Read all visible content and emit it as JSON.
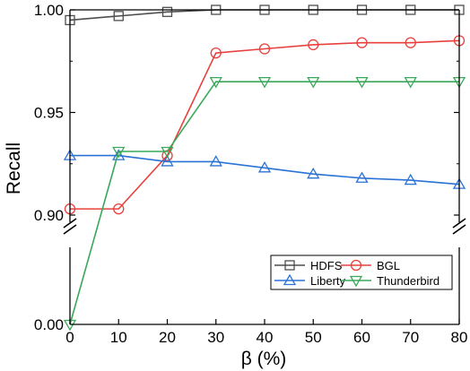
{
  "chart_data": {
    "type": "line",
    "title": "",
    "xlabel": "β (%)",
    "ylabel": "Recall",
    "x": [
      0,
      10,
      20,
      30,
      40,
      50,
      60,
      70,
      80
    ],
    "xlim": [
      0,
      80
    ],
    "x_ticks": [
      "0",
      "10",
      "20",
      "30",
      "40",
      "50",
      "60",
      "70",
      "80"
    ],
    "y_scale": "broken",
    "y_segments": [
      {
        "range": [
          0.0,
          0.0
        ],
        "ticks": [
          "0.00"
        ]
      },
      {
        "range": [
          0.9,
          1.0
        ],
        "ticks": [
          "0.90",
          "0.95",
          "1.00"
        ]
      }
    ],
    "grid": false,
    "legend_position": "lower-right",
    "series": [
      {
        "name": "HDFS",
        "color": "#4d4d4d",
        "marker": "square",
        "values": [
          0.995,
          0.997,
          0.999,
          1.0,
          1.0,
          1.0,
          1.0,
          1.0,
          1.0
        ]
      },
      {
        "name": "BGL",
        "color": "#e8403c",
        "marker": "circle",
        "values": [
          0.903,
          0.903,
          0.929,
          0.979,
          0.981,
          0.983,
          0.984,
          0.984,
          0.985
        ]
      },
      {
        "name": "Liberty",
        "color": "#2a72d5",
        "marker": "triangle-up",
        "values": [
          0.929,
          0.929,
          0.926,
          0.926,
          0.923,
          0.92,
          0.918,
          0.917,
          0.915
        ]
      },
      {
        "name": "Thunderbird",
        "color": "#3aa85a",
        "marker": "triangle-down",
        "values": [
          0.0,
          0.931,
          0.931,
          0.965,
          0.965,
          0.965,
          0.965,
          0.965,
          0.965
        ]
      }
    ]
  }
}
